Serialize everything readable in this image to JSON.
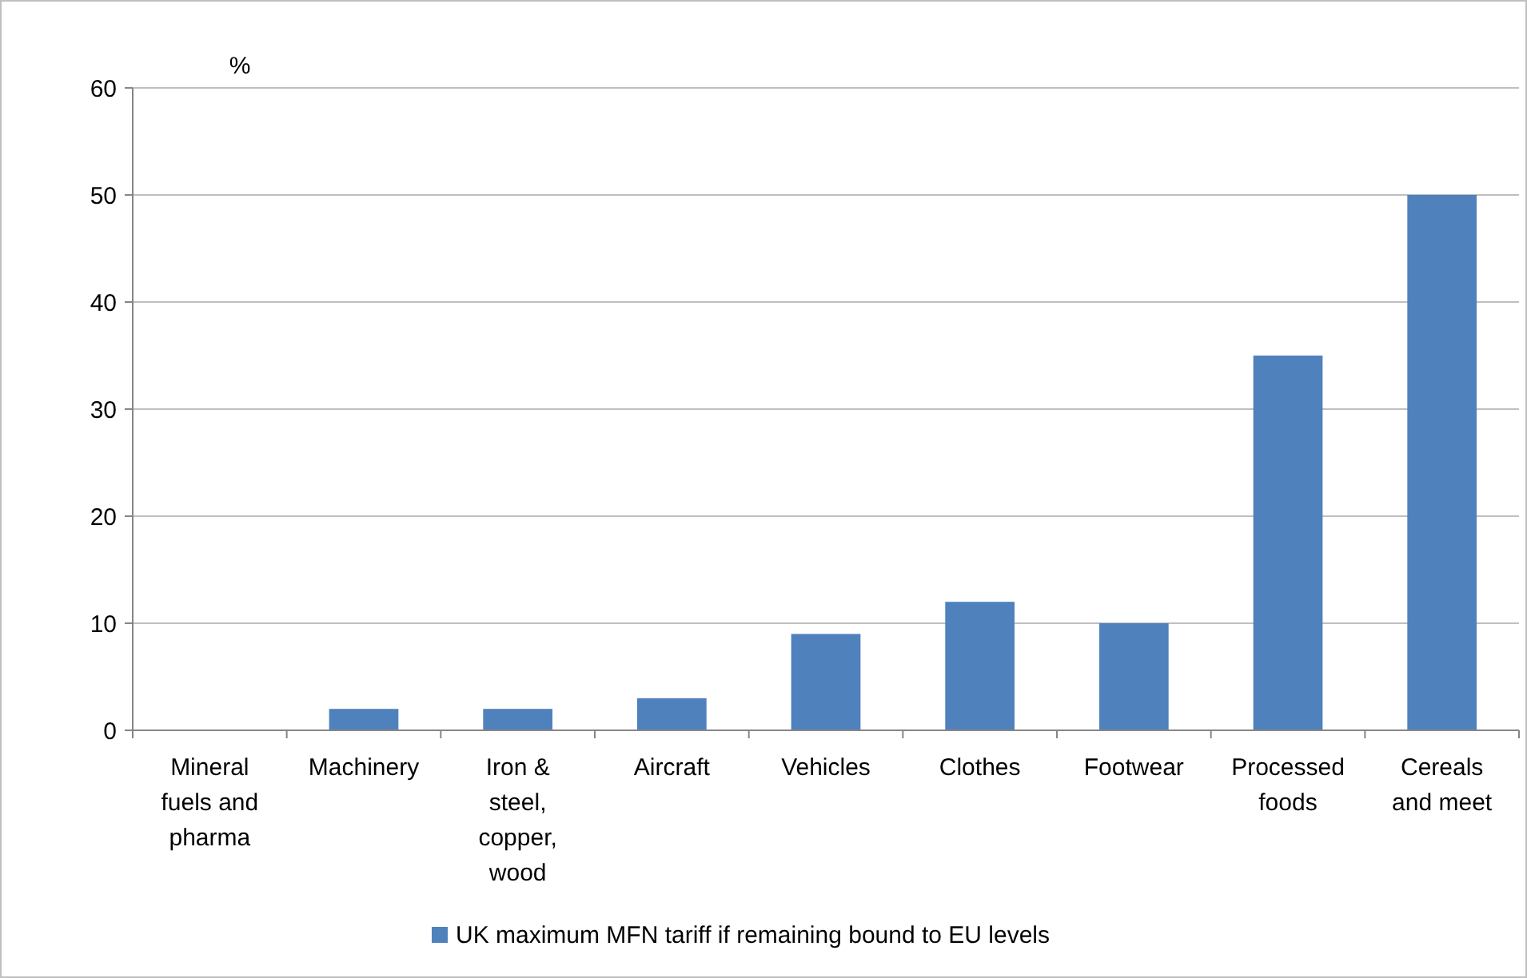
{
  "chart_data": {
    "type": "bar",
    "ylabel": "%",
    "categories": [
      "Mineral fuels and pharma",
      "Machinery",
      "Iron & steel, copper, wood",
      "Aircraft",
      "Vehicles",
      "Clothes",
      "Footwear",
      "Processed foods",
      "Cereals and meet"
    ],
    "series": [
      {
        "name": "UK maximum MFN tariff if remaining bound to EU levels",
        "color": "#4f81bd",
        "values": [
          0,
          2,
          2,
          3,
          9,
          12,
          10,
          35,
          50
        ]
      }
    ],
    "ylim": [
      0,
      60
    ],
    "yticks": [
      0,
      10,
      20,
      30,
      40,
      50,
      60
    ],
    "grid": "y",
    "legend": "bottom"
  }
}
